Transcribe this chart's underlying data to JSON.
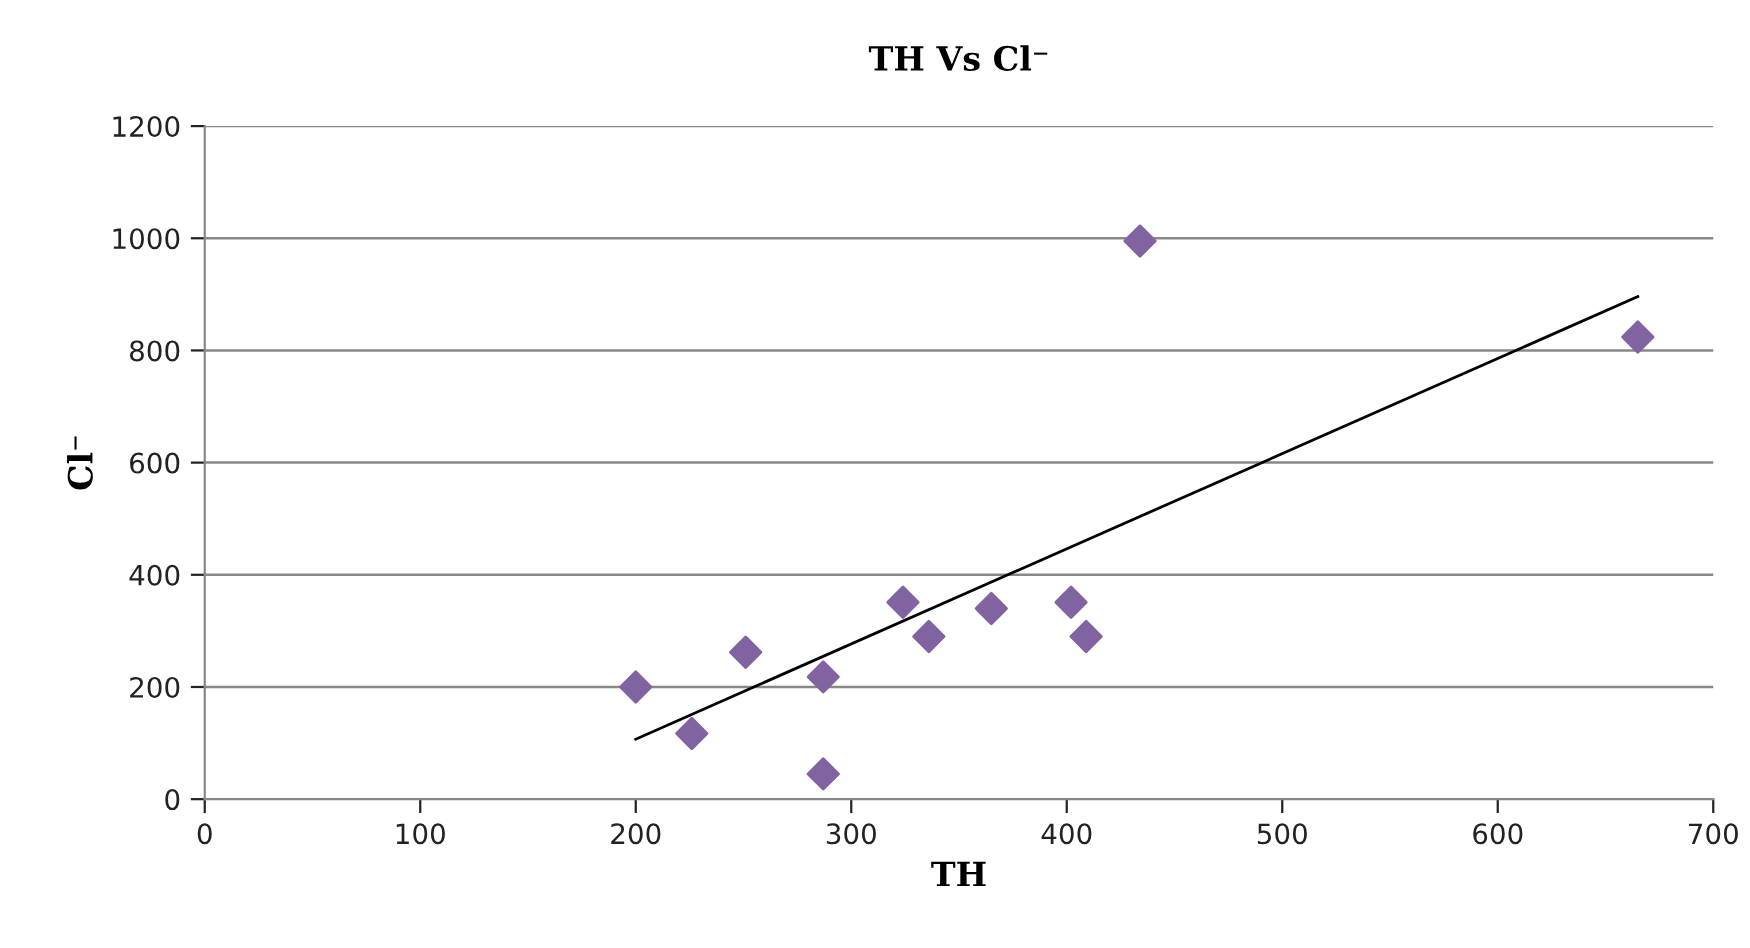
{
  "chart_data": {
    "type": "scatter",
    "title": "TH Vs Cl⁻",
    "xlabel": "TH",
    "ylabel": "Cl⁻",
    "xlim": [
      0,
      700
    ],
    "xticks": [
      0,
      100,
      200,
      300,
      400,
      500,
      600,
      700
    ],
    "ylim": [
      0,
      1200
    ],
    "yticks": [
      0,
      200,
      400,
      600,
      800,
      1000,
      1200
    ],
    "grid": "y",
    "legend": false,
    "series": [
      {
        "marker": "diamond",
        "color": "#8064a2",
        "x": [
          200,
          226,
          251,
          287,
          287,
          324,
          336,
          365,
          402,
          409,
          434,
          665
        ],
        "values": [
          200,
          117,
          262,
          218,
          45,
          351,
          290,
          340,
          351,
          290,
          995,
          824
        ]
      },
      {
        "type": "line",
        "marker": "none",
        "line_style": "solid",
        "color": "#000000",
        "x": [
          200,
          665
        ],
        "values": [
          107,
          896
        ]
      }
    ]
  }
}
